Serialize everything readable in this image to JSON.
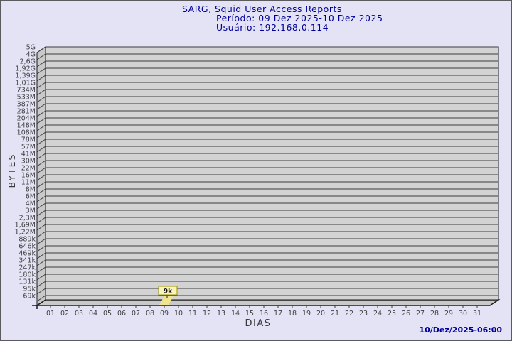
{
  "window": {
    "bg": "#e3e3f5",
    "border_color": "#5a5a5f"
  },
  "header": {
    "title": "SARG, Squid User Access Reports",
    "period": "Período: 09 Dez 2025-10 Dez 2025",
    "user": "Usuário: 192.168.0.114",
    "color": "#000099"
  },
  "footer": {
    "timestamp": "10/Dez/2025-06:00"
  },
  "chart_data": {
    "type": "bar",
    "title": "SARG, Squid User Access Reports",
    "subtitle_period": "Período: 09 Dez 2025-10 Dez 2025",
    "subtitle_user": "Usuário: 192.168.0.114",
    "xlabel": "DIAS",
    "ylabel": "BYTES",
    "x_categories": [
      "01",
      "02",
      "03",
      "04",
      "05",
      "06",
      "07",
      "08",
      "09",
      "10",
      "11",
      "12",
      "13",
      "14",
      "15",
      "16",
      "17",
      "18",
      "19",
      "20",
      "21",
      "22",
      "23",
      "24",
      "25",
      "26",
      "27",
      "28",
      "29",
      "30",
      "31"
    ],
    "y_tick_labels": [
      "5G",
      "4G",
      "2,6G",
      "1,92G",
      "1,39G",
      "1,01G",
      "734M",
      "533M",
      "387M",
      "281M",
      "204M",
      "148M",
      "108M",
      "78M",
      "57M",
      "41M",
      "30M",
      "22M",
      "16M",
      "11M",
      "8M",
      "6M",
      "4M",
      "3M",
      "2,3M",
      "1,69M",
      "1,22M",
      "889k",
      "646k",
      "469k",
      "341k",
      "247k",
      "180k",
      "131k",
      "95k",
      "69k"
    ],
    "y_axis": {
      "scale": "log",
      "top": "5G",
      "bottom": "69k",
      "grid": true
    },
    "legend": "none",
    "series": [
      {
        "name": "192.168.0.114",
        "points": [
          {
            "x": "09",
            "label": "9k",
            "value_bytes": 9000
          }
        ]
      }
    ],
    "colors": {
      "plot_face": "#d3d3d3",
      "plot_wall": "#c9c9c9",
      "grid_line": "#3c3c3c",
      "edge": "#1a1a1a",
      "bar_fill": "#f0e48e",
      "bar_label_bg": "#f9f4bb",
      "bar_label_border": "#9c9200"
    }
  }
}
